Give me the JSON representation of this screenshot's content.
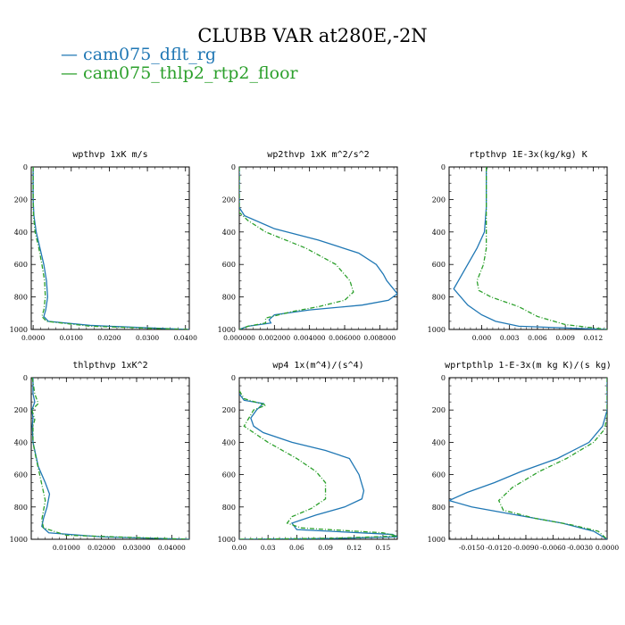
{
  "figure": {
    "title": "CLUBB VAR at280E,-2N",
    "legend": [
      {
        "label": "cam075_dflt_rg",
        "color": "#1f77b4"
      },
      {
        "label": "cam075_thlp2_rtp2_floor",
        "color": "#2ca02c"
      }
    ]
  },
  "chart_data": [
    {
      "type": "line",
      "title": "wpthvp  1xK m/s",
      "xlim": [
        -0.0005,
        0.041
      ],
      "ylim": [
        1000,
        0
      ],
      "x_ticks": [
        0.0,
        0.01,
        0.02,
        0.03,
        0.04
      ],
      "x_tick_labels": [
        "0.0000",
        "0.0100",
        "0.0200",
        "0.0300",
        "0.0400"
      ],
      "y_ticks": [
        0,
        200,
        400,
        600,
        800,
        1000
      ],
      "y_tick_labels": [
        "0",
        "200",
        "400",
        "600",
        "800",
        "1000"
      ],
      "series": [
        {
          "name": "cam075_dflt_rg",
          "color": "#1f77b4",
          "dashed": false,
          "points": [
            [
              0.0,
              0
            ],
            [
              0.0,
              200
            ],
            [
              0.0002,
              300
            ],
            [
              0.0008,
              400
            ],
            [
              0.0018,
              500
            ],
            [
              0.0028,
              600
            ],
            [
              0.0035,
              700
            ],
            [
              0.0038,
              800
            ],
            [
              0.0033,
              880
            ],
            [
              0.0028,
              920
            ],
            [
              0.004,
              950
            ],
            [
              0.015,
              975
            ],
            [
              0.03,
              990
            ],
            [
              0.041,
              1000
            ]
          ]
        },
        {
          "name": "cam075_thlp2_rtp2_floor",
          "color": "#2ca02c",
          "dashed": true,
          "points": [
            [
              0.0,
              0
            ],
            [
              0.0,
              200
            ],
            [
              0.0001,
              300
            ],
            [
              0.0005,
              400
            ],
            [
              0.0015,
              500
            ],
            [
              0.0023,
              600
            ],
            [
              0.003,
              700
            ],
            [
              0.0032,
              800
            ],
            [
              0.0028,
              880
            ],
            [
              0.0023,
              920
            ],
            [
              0.0035,
              950
            ],
            [
              0.015,
              980
            ],
            [
              0.03,
              992
            ],
            [
              0.041,
              1000
            ]
          ]
        }
      ]
    },
    {
      "type": "line",
      "title": "wp2thvp  1xK m^2/s^2",
      "xlim": [
        0.0,
        0.009
      ],
      "ylim": [
        1000,
        0
      ],
      "x_ticks": [
        0.0,
        0.002,
        0.004,
        0.006,
        0.008
      ],
      "x_tick_labels": [
        "0.000000",
        "0.002000",
        "0.004000",
        "0.006000",
        "0.008000"
      ],
      "y_ticks": [
        0,
        200,
        400,
        600,
        800,
        1000
      ],
      "y_tick_labels": [
        "0",
        "200",
        "400",
        "600",
        "800",
        "1000"
      ],
      "series": [
        {
          "name": "cam075_dflt_rg",
          "color": "#1f77b4",
          "dashed": false,
          "points": [
            [
              0.0,
              0
            ],
            [
              0.0,
              250
            ],
            [
              0.0003,
              300
            ],
            [
              0.002,
              380
            ],
            [
              0.0045,
              450
            ],
            [
              0.0068,
              530
            ],
            [
              0.0078,
              600
            ],
            [
              0.0082,
              660
            ],
            [
              0.0084,
              700
            ],
            [
              0.009,
              780
            ],
            [
              0.0085,
              820
            ],
            [
              0.007,
              850
            ],
            [
              0.004,
              880
            ],
            [
              0.002,
              910
            ],
            [
              0.0017,
              940
            ],
            [
              0.0018,
              960
            ],
            [
              0.0005,
              980
            ],
            [
              0.0,
              1000
            ]
          ]
        },
        {
          "name": "cam075_thlp2_rtp2_floor",
          "color": "#2ca02c",
          "dashed": true,
          "points": [
            [
              0.0,
              0
            ],
            [
              0.0,
              280
            ],
            [
              0.0005,
              330
            ],
            [
              0.0015,
              400
            ],
            [
              0.0038,
              500
            ],
            [
              0.0055,
              600
            ],
            [
              0.0063,
              700
            ],
            [
              0.0065,
              770
            ],
            [
              0.006,
              820
            ],
            [
              0.0045,
              860
            ],
            [
              0.003,
              890
            ],
            [
              0.0015,
              930
            ],
            [
              0.0015,
              960
            ],
            [
              0.0005,
              980
            ],
            [
              0.0,
              1000
            ]
          ]
        }
      ]
    },
    {
      "type": "line",
      "title": "rtpthvp  1E-3x(kg/kg) K",
      "xlim": [
        -0.0035,
        0.0135
      ],
      "ylim": [
        1000,
        0
      ],
      "x_ticks": [
        0.0,
        0.003,
        0.006,
        0.009,
        0.012
      ],
      "x_tick_labels": [
        "0.000",
        "0.003",
        "0.006",
        "0.009",
        "0.012"
      ],
      "y_ticks": [
        0,
        200,
        400,
        600,
        800,
        1000
      ],
      "y_tick_labels": [
        "0",
        "200",
        "400",
        "600",
        "800",
        "1000"
      ],
      "series": [
        {
          "name": "cam075_dflt_rg",
          "color": "#1f77b4",
          "dashed": false,
          "points": [
            [
              0.0005,
              0
            ],
            [
              0.0005,
              250
            ],
            [
              0.0003,
              400
            ],
            [
              -0.0005,
              500
            ],
            [
              -0.0015,
              600
            ],
            [
              -0.0025,
              700
            ],
            [
              -0.003,
              750
            ],
            [
              -0.0015,
              850
            ],
            [
              0.0,
              910
            ],
            [
              0.0015,
              950
            ],
            [
              0.004,
              980
            ],
            [
              0.0135,
              1000
            ]
          ]
        },
        {
          "name": "cam075_thlp2_rtp2_floor",
          "color": "#2ca02c",
          "dashed": true,
          "points": [
            [
              0.0005,
              0
            ],
            [
              0.0005,
              300
            ],
            [
              0.0005,
              500
            ],
            [
              0.0002,
              600
            ],
            [
              -0.0005,
              700
            ],
            [
              -0.0003,
              760
            ],
            [
              0.001,
              800
            ],
            [
              0.004,
              860
            ],
            [
              0.006,
              920
            ],
            [
              0.009,
              970
            ],
            [
              0.0135,
              1000
            ]
          ]
        }
      ]
    },
    {
      "type": "line",
      "title": "thlpthvp  1xK^2",
      "xlim": [
        0.0,
        0.045
      ],
      "ylim": [
        1000,
        0
      ],
      "x_ticks": [
        0.01,
        0.02,
        0.03,
        0.04
      ],
      "x_tick_labels": [
        "0.01000",
        "0.02000",
        "0.03000",
        "0.04000"
      ],
      "y_ticks": [
        0,
        200,
        400,
        600,
        800,
        1000
      ],
      "y_tick_labels": [
        "0",
        "200",
        "400",
        "600",
        "800",
        "1000"
      ],
      "series": [
        {
          "name": "cam075_dflt_rg",
          "color": "#1f77b4",
          "dashed": false,
          "points": [
            [
              0.0005,
              0
            ],
            [
              0.0005,
              100
            ],
            [
              0.001,
              150
            ],
            [
              0.0002,
              200
            ],
            [
              0.0005,
              250
            ],
            [
              0.0003,
              300
            ],
            [
              0.0005,
              400
            ],
            [
              0.001,
              450
            ],
            [
              0.002,
              550
            ],
            [
              0.004,
              650
            ],
            [
              0.0052,
              720
            ],
            [
              0.0045,
              800
            ],
            [
              0.0035,
              870
            ],
            [
              0.003,
              920
            ],
            [
              0.005,
              960
            ],
            [
              0.02,
              985
            ],
            [
              0.045,
              1000
            ]
          ]
        },
        {
          "name": "cam075_thlp2_rtp2_floor",
          "color": "#2ca02c",
          "dashed": true,
          "points": [
            [
              0.0003,
              0
            ],
            [
              0.001,
              100
            ],
            [
              0.002,
              160
            ],
            [
              0.0002,
              200
            ],
            [
              0.001,
              260
            ],
            [
              0.0005,
              300
            ],
            [
              0.0005,
              400
            ],
            [
              0.001,
              460
            ],
            [
              0.002,
              560
            ],
            [
              0.0032,
              680
            ],
            [
              0.004,
              760
            ],
            [
              0.0035,
              820
            ],
            [
              0.003,
              880
            ],
            [
              0.0035,
              930
            ],
            [
              0.01,
              975
            ],
            [
              0.045,
              1000
            ]
          ]
        }
      ]
    },
    {
      "type": "line",
      "title": "wp4  1x(m^4)/(s^4)",
      "xlim": [
        0.0,
        0.165
      ],
      "ylim": [
        1000,
        0
      ],
      "x_ticks": [
        0.0,
        0.03,
        0.06,
        0.09,
        0.12,
        0.15
      ],
      "x_tick_labels": [
        "0.00",
        "0.03",
        "0.06",
        "0.09",
        "0.12",
        "0.15"
      ],
      "y_ticks": [
        0,
        200,
        400,
        600,
        800,
        1000
      ],
      "y_tick_labels": [
        "0",
        "200",
        "400",
        "600",
        "800",
        "1000"
      ],
      "series": [
        {
          "name": "cam075_dflt_rg",
          "color": "#1f77b4",
          "dashed": false,
          "points": [
            [
              0.0,
              100
            ],
            [
              0.005,
              140
            ],
            [
              0.025,
              160
            ],
            [
              0.018,
              200
            ],
            [
              0.012,
              250
            ],
            [
              0.015,
              300
            ],
            [
              0.025,
              340
            ],
            [
              0.055,
              400
            ],
            [
              0.09,
              450
            ],
            [
              0.115,
              500
            ],
            [
              0.125,
              600
            ],
            [
              0.13,
              700
            ],
            [
              0.128,
              750
            ],
            [
              0.11,
              800
            ],
            [
              0.08,
              850
            ],
            [
              0.055,
              900
            ],
            [
              0.06,
              940
            ],
            [
              0.16,
              970
            ],
            [
              0.165,
              985
            ],
            [
              0.1,
              995
            ],
            [
              0.0,
              1000
            ]
          ]
        },
        {
          "name": "cam075_thlp2_rtp2_floor",
          "color": "#2ca02c",
          "dashed": true,
          "points": [
            [
              0.0,
              80
            ],
            [
              0.005,
              130
            ],
            [
              0.028,
              170
            ],
            [
              0.015,
              200
            ],
            [
              0.01,
              250
            ],
            [
              0.005,
              300
            ],
            [
              0.015,
              340
            ],
            [
              0.03,
              400
            ],
            [
              0.06,
              500
            ],
            [
              0.08,
              580
            ],
            [
              0.09,
              650
            ],
            [
              0.09,
              750
            ],
            [
              0.075,
              810
            ],
            [
              0.055,
              860
            ],
            [
              0.05,
              900
            ],
            [
              0.065,
              930
            ],
            [
              0.15,
              960
            ],
            [
              0.165,
              980
            ],
            [
              0.1,
              993
            ],
            [
              0.0,
              1000
            ]
          ]
        }
      ]
    },
    {
      "type": "line",
      "title": "wprtpthlp  1-E-3x(m kg K)/(s kg)",
      "xlim": [
        -0.0175,
        0.0
      ],
      "ylim": [
        1000,
        0
      ],
      "x_ticks": [
        -0.015,
        -0.012,
        -0.009,
        -0.006,
        -0.003,
        0.0
      ],
      "x_tick_labels": [
        "-0.0150",
        "-0.0120",
        "-0.0090",
        "-0.0060",
        "-0.0030",
        "0.0000"
      ],
      "y_ticks": [
        0,
        200,
        400,
        600,
        800,
        1000
      ],
      "y_tick_labels": [
        "0",
        "200",
        "400",
        "600",
        "800",
        "1000"
      ],
      "series": [
        {
          "name": "cam075_dflt_rg",
          "color": "#1f77b4",
          "dashed": false,
          "points": [
            [
              0.0,
              0
            ],
            [
              0.0,
              200
            ],
            [
              -0.0005,
              300
            ],
            [
              -0.002,
              400
            ],
            [
              -0.0055,
              500
            ],
            [
              -0.0095,
              580
            ],
            [
              -0.0125,
              650
            ],
            [
              -0.0155,
              710
            ],
            [
              -0.0175,
              760
            ],
            [
              -0.015,
              800
            ],
            [
              -0.01,
              850
            ],
            [
              -0.005,
              900
            ],
            [
              -0.0015,
              950
            ],
            [
              0.0,
              1000
            ]
          ]
        },
        {
          "name": "cam075_thlp2_rtp2_floor",
          "color": "#2ca02c",
          "dashed": true,
          "points": [
            [
              0.0,
              0
            ],
            [
              0.0,
              240
            ],
            [
              -0.0003,
              320
            ],
            [
              -0.0015,
              400
            ],
            [
              -0.0045,
              500
            ],
            [
              -0.0075,
              580
            ],
            [
              -0.0105,
              680
            ],
            [
              -0.012,
              760
            ],
            [
              -0.0115,
              820
            ],
            [
              -0.008,
              870
            ],
            [
              -0.004,
              910
            ],
            [
              -0.001,
              950
            ],
            [
              0.0,
              1000
            ]
          ]
        }
      ]
    }
  ]
}
